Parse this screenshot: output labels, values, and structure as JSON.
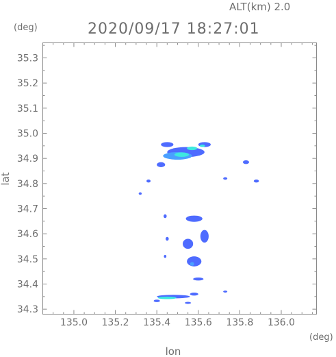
{
  "header": {
    "altitude": "ALT(km)  2.0",
    "timestamp": "2020/09/17 18:27:01",
    "y_unit": "(deg)",
    "x_unit": "(deg)"
  },
  "chart_data": {
    "type": "heatmap",
    "xlabel": "lon",
    "ylabel": "lat",
    "x_unit": "(deg)",
    "y_unit": "(deg)",
    "xlim": [
      134.85,
      136.17
    ],
    "ylim": [
      34.28,
      35.36
    ],
    "grid": false,
    "x_ticks": [
      135.0,
      135.2,
      135.4,
      135.6,
      135.8,
      136.0
    ],
    "x_tick_labels": [
      "135.0",
      "135.2",
      "135.4",
      "135.6",
      "135.8",
      "136.0"
    ],
    "y_ticks": [
      34.3,
      34.4,
      34.5,
      34.6,
      34.7,
      34.8,
      34.9,
      35.0,
      35.1,
      35.2,
      35.3
    ],
    "y_tick_labels": [
      "34.3",
      "34.4",
      "34.5",
      "34.6",
      "34.7",
      "34.8",
      "34.9",
      "35.0",
      "35.1",
      "35.2",
      "35.3"
    ],
    "colors": {
      "weak": "#3b5bff",
      "moderate": "#4aa0ff",
      "strong": "#3ee8e0",
      "axis": "#8a8a8a"
    },
    "echo_cells": [
      {
        "lon": 135.54,
        "lat": 34.925,
        "dlon": 0.18,
        "dlat": 0.04,
        "level": "weak"
      },
      {
        "lon": 135.5,
        "lat": 34.91,
        "dlon": 0.14,
        "dlat": 0.03,
        "level": "moderate"
      },
      {
        "lon": 135.52,
        "lat": 34.915,
        "dlon": 0.07,
        "dlat": 0.018,
        "level": "strong"
      },
      {
        "lon": 135.57,
        "lat": 34.94,
        "dlon": 0.05,
        "dlat": 0.014,
        "level": "strong"
      },
      {
        "lon": 135.63,
        "lat": 34.955,
        "dlon": 0.06,
        "dlat": 0.02,
        "level": "weak"
      },
      {
        "lon": 135.62,
        "lat": 34.95,
        "dlon": 0.025,
        "dlat": 0.01,
        "level": "strong"
      },
      {
        "lon": 135.45,
        "lat": 34.955,
        "dlon": 0.06,
        "dlat": 0.02,
        "level": "weak"
      },
      {
        "lon": 135.42,
        "lat": 34.875,
        "dlon": 0.04,
        "dlat": 0.02,
        "level": "weak"
      },
      {
        "lon": 135.36,
        "lat": 34.81,
        "dlon": 0.02,
        "dlat": 0.012,
        "level": "weak"
      },
      {
        "lon": 135.32,
        "lat": 34.76,
        "dlon": 0.015,
        "dlat": 0.01,
        "level": "weak"
      },
      {
        "lon": 135.83,
        "lat": 34.885,
        "dlon": 0.03,
        "dlat": 0.015,
        "level": "weak"
      },
      {
        "lon": 135.88,
        "lat": 34.81,
        "dlon": 0.025,
        "dlat": 0.012,
        "level": "weak"
      },
      {
        "lon": 135.73,
        "lat": 34.82,
        "dlon": 0.02,
        "dlat": 0.01,
        "level": "weak"
      },
      {
        "lon": 135.58,
        "lat": 34.66,
        "dlon": 0.08,
        "dlat": 0.025,
        "level": "weak"
      },
      {
        "lon": 135.63,
        "lat": 34.59,
        "dlon": 0.04,
        "dlat": 0.05,
        "level": "weak"
      },
      {
        "lon": 135.55,
        "lat": 34.56,
        "dlon": 0.05,
        "dlat": 0.04,
        "level": "weak"
      },
      {
        "lon": 135.58,
        "lat": 34.49,
        "dlon": 0.07,
        "dlat": 0.04,
        "level": "weak"
      },
      {
        "lon": 135.57,
        "lat": 34.48,
        "dlon": 0.02,
        "dlat": 0.015,
        "level": "moderate"
      },
      {
        "lon": 135.44,
        "lat": 34.67,
        "dlon": 0.015,
        "dlat": 0.015,
        "level": "weak"
      },
      {
        "lon": 135.45,
        "lat": 34.58,
        "dlon": 0.015,
        "dlat": 0.015,
        "level": "weak"
      },
      {
        "lon": 135.44,
        "lat": 34.51,
        "dlon": 0.012,
        "dlat": 0.012,
        "level": "weak"
      },
      {
        "lon": 135.6,
        "lat": 34.42,
        "dlon": 0.05,
        "dlat": 0.012,
        "level": "weak"
      },
      {
        "lon": 135.58,
        "lat": 34.36,
        "dlon": 0.04,
        "dlat": 0.012,
        "level": "weak"
      },
      {
        "lon": 135.48,
        "lat": 34.35,
        "dlon": 0.16,
        "dlat": 0.014,
        "level": "weak"
      },
      {
        "lon": 135.45,
        "lat": 34.345,
        "dlon": 0.09,
        "dlat": 0.01,
        "level": "strong"
      },
      {
        "lon": 135.4,
        "lat": 34.333,
        "dlon": 0.03,
        "dlat": 0.01,
        "level": "weak"
      },
      {
        "lon": 135.55,
        "lat": 34.325,
        "dlon": 0.03,
        "dlat": 0.008,
        "level": "weak"
      },
      {
        "lon": 135.73,
        "lat": 34.37,
        "dlon": 0.02,
        "dlat": 0.008,
        "level": "weak"
      }
    ]
  }
}
